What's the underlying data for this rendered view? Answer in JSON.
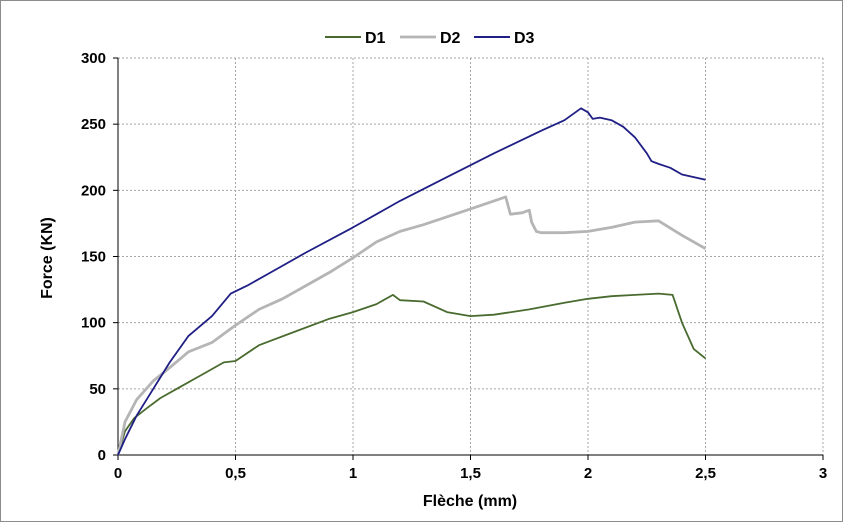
{
  "chart_data": {
    "type": "line",
    "title": "",
    "xlabel": "Flèche (mm)",
    "ylabel": "Force (KN)",
    "xlim": [
      0,
      3
    ],
    "ylim": [
      0,
      300
    ],
    "x_ticks": [
      0,
      0.5,
      1,
      1.5,
      2,
      2.5,
      3
    ],
    "x_tick_labels": [
      "0",
      "0,5",
      "1",
      "1,5",
      "2",
      "2,5",
      "3"
    ],
    "y_ticks": [
      0,
      50,
      100,
      150,
      200,
      250,
      300
    ],
    "y_tick_labels": [
      "0",
      "50",
      "100",
      "150",
      "200",
      "250",
      "300"
    ],
    "grid": true,
    "legend_position": "top-center",
    "series": [
      {
        "name": "D1",
        "color": "#4a6b2f",
        "x": [
          0,
          0.03,
          0.07,
          0.12,
          0.18,
          0.25,
          0.35,
          0.45,
          0.5,
          0.6,
          0.75,
          0.9,
          1.0,
          1.1,
          1.17,
          1.2,
          1.3,
          1.4,
          1.5,
          1.6,
          1.75,
          1.9,
          2.0,
          2.1,
          2.2,
          2.3,
          2.36,
          2.4,
          2.45,
          2.5
        ],
        "y": [
          0,
          18,
          28,
          35,
          43,
          50,
          60,
          70,
          71,
          83,
          93,
          103,
          108,
          114,
          121,
          117,
          116,
          108,
          105,
          106,
          110,
          115,
          118,
          120,
          121,
          122,
          121,
          100,
          80,
          73
        ]
      },
      {
        "name": "D2",
        "color": "#b5b5b5",
        "x": [
          0,
          0.03,
          0.08,
          0.15,
          0.22,
          0.3,
          0.4,
          0.5,
          0.6,
          0.7,
          0.8,
          0.9,
          1.0,
          1.1,
          1.2,
          1.3,
          1.4,
          1.5,
          1.55,
          1.6,
          1.65,
          1.67,
          1.72,
          1.75,
          1.76,
          1.78,
          1.8,
          1.9,
          2.0,
          2.1,
          2.2,
          2.3,
          2.4,
          2.5
        ],
        "y": [
          0,
          25,
          42,
          56,
          66,
          78,
          85,
          98,
          110,
          118,
          128,
          138,
          149,
          161,
          169,
          174,
          180,
          186,
          189,
          192,
          195,
          182,
          183,
          185,
          176,
          169,
          168,
          168,
          169,
          172,
          176,
          177,
          166,
          156
        ]
      },
      {
        "name": "D3",
        "color": "#1f1f85",
        "x": [
          0,
          0.03,
          0.08,
          0.15,
          0.22,
          0.3,
          0.4,
          0.48,
          0.55,
          0.65,
          0.8,
          1.0,
          1.2,
          1.4,
          1.6,
          1.8,
          1.9,
          1.97,
          2.0,
          2.02,
          2.05,
          2.1,
          2.15,
          2.2,
          2.25,
          2.27,
          2.3,
          2.35,
          2.4,
          2.5
        ],
        "y": [
          0,
          12,
          30,
          50,
          70,
          90,
          105,
          122,
          128,
          138,
          153,
          172,
          192,
          210,
          228,
          245,
          253,
          262,
          259,
          254,
          255,
          253,
          248,
          240,
          228,
          222,
          220,
          217,
          212,
          208
        ]
      }
    ]
  }
}
